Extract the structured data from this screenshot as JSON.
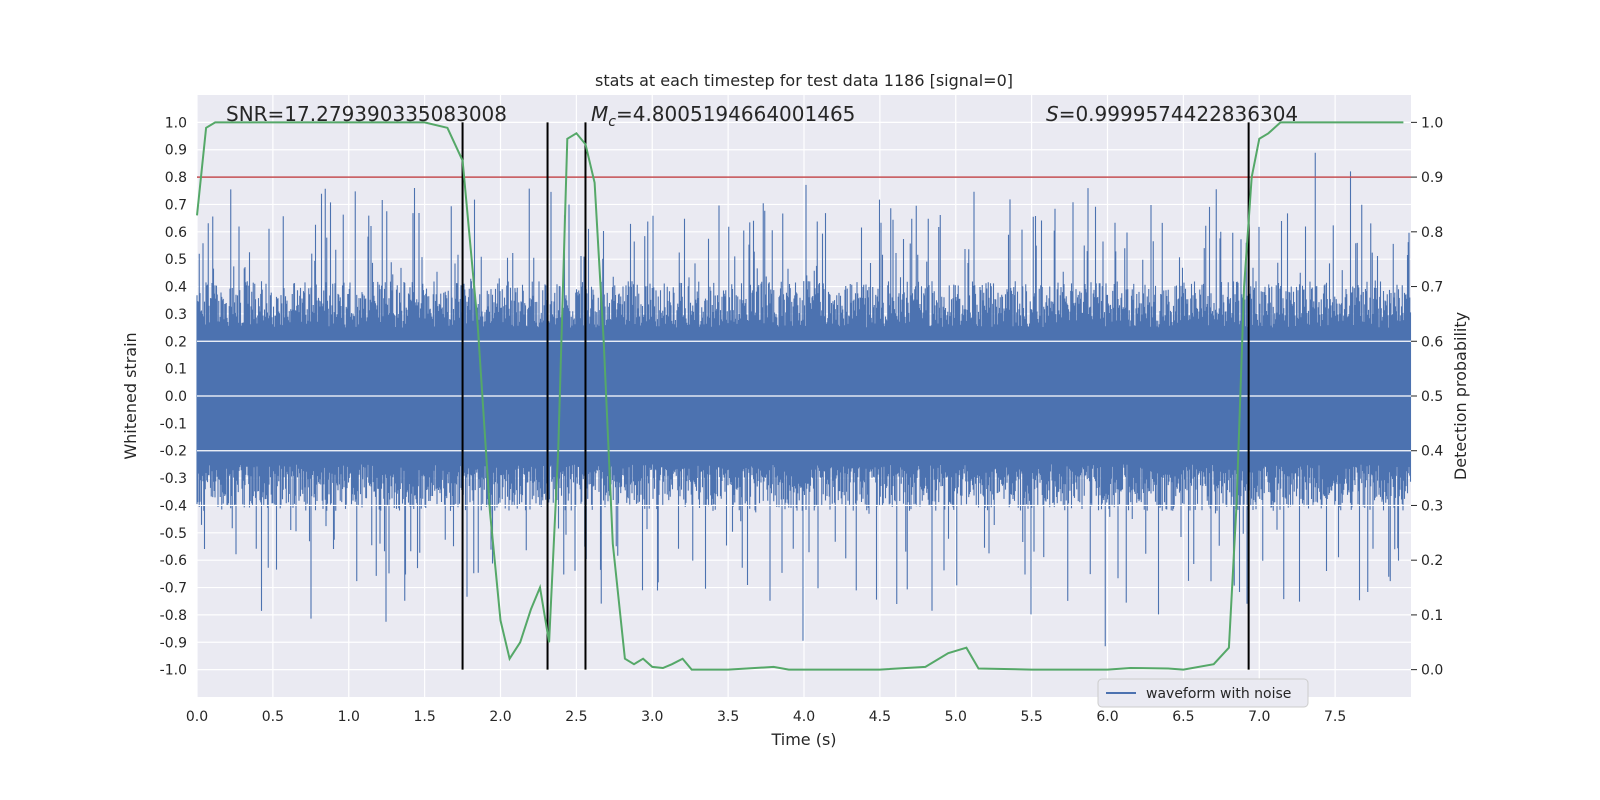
{
  "chart_data": {
    "type": "line",
    "title": "stats at each timestep for test data 1186 [signal=0]",
    "xlabel": "Time (s)",
    "ylabel": "Whitened strain",
    "y2label": "Detection probability",
    "xlim": [
      0,
      8
    ],
    "ylim": [
      -1.1,
      1.1
    ],
    "y2lim": [
      -0.05,
      1.05
    ],
    "grid": true,
    "legend_position": "bottom-right",
    "x_ticks": [
      "0.0",
      "0.5",
      "1.0",
      "1.5",
      "2.0",
      "2.5",
      "3.0",
      "3.5",
      "4.0",
      "4.5",
      "5.0",
      "5.5",
      "6.0",
      "6.5",
      "7.0",
      "7.5"
    ],
    "y_ticks": [
      "1.0",
      "0.9",
      "0.8",
      "0.7",
      "0.6",
      "0.5",
      "0.4",
      "0.3",
      "0.2",
      "0.1",
      "0.0",
      "-0.1",
      "-0.2",
      "-0.3",
      "-0.4",
      "-0.5",
      "-0.6",
      "-0.7",
      "-0.8",
      "-0.9",
      "-1.0"
    ],
    "y2_ticks": [
      "1.0",
      "0.9",
      "0.8",
      "0.7",
      "0.6",
      "0.5",
      "0.4",
      "0.3",
      "0.2",
      "0.1",
      "0.0"
    ],
    "annotations": [
      {
        "text": "SNR=17.279390335083008"
      },
      {
        "text": "=4.8005194664001465",
        "symbol": "M",
        "subscript": "c"
      },
      {
        "text": "=0.9999574422836304",
        "symbol": "S"
      }
    ],
    "series": [
      {
        "name": "waveform with noise",
        "color": "#4c72b0",
        "axis": "left",
        "style": "dense noise band"
      },
      {
        "color": "#55a868",
        "axis": "right",
        "x": [
          0.0,
          0.06,
          0.12,
          0.2,
          0.5,
          1.0,
          1.5,
          1.65,
          1.75,
          1.85,
          1.93,
          2.0,
          2.06,
          2.13,
          2.2,
          2.26,
          2.32,
          2.38,
          2.44,
          2.5,
          2.56,
          2.62,
          2.68,
          2.74,
          2.82,
          2.88,
          2.94,
          3.0,
          3.07,
          3.13,
          3.2,
          3.26,
          3.5,
          3.8,
          3.9,
          4.2,
          4.5,
          4.8,
          4.95,
          5.07,
          5.15,
          5.5,
          6.0,
          6.15,
          6.4,
          6.5,
          6.7,
          6.8,
          6.85,
          6.9,
          6.95,
          7.0,
          7.06,
          7.14,
          7.2,
          7.5,
          7.95
        ],
        "y": [
          0.83,
          0.99,
          1.0,
          1.0,
          1.0,
          1.0,
          1.0,
          0.99,
          0.93,
          0.63,
          0.29,
          0.09,
          0.02,
          0.05,
          0.11,
          0.15,
          0.05,
          0.4,
          0.97,
          0.98,
          0.96,
          0.89,
          0.6,
          0.23,
          0.02,
          0.01,
          0.02,
          0.005,
          0.003,
          0.01,
          0.02,
          0.0,
          0.0,
          0.005,
          0.0,
          0.0,
          0.0,
          0.005,
          0.03,
          0.04,
          0.002,
          0.0,
          0.0,
          0.003,
          0.002,
          0.0,
          0.01,
          0.04,
          0.3,
          0.7,
          0.9,
          0.97,
          0.98,
          1.0,
          1.0,
          1.0,
          1.0
        ]
      }
    ],
    "threshold": {
      "value": 0.9,
      "axis": "right",
      "color": "#c44e52"
    },
    "vertical_lines": [
      1.75,
      2.31,
      2.56,
      6.93
    ]
  }
}
